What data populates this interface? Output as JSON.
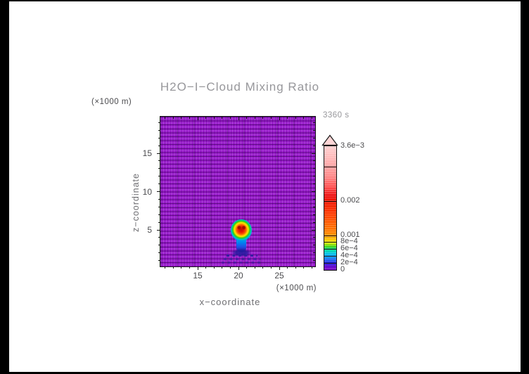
{
  "title": "H2O−I−Cloud Mixing Ratio",
  "timestamp": "3360 s",
  "plot": {
    "x_axis": {
      "label": "x−coordinate",
      "unit": "(×1000 m)",
      "ticks": [
        {
          "label": "15",
          "value": 15
        },
        {
          "label": "20",
          "value": 20
        },
        {
          "label": "25",
          "value": 25
        }
      ]
    },
    "y_axis": {
      "label": "z−coordinate",
      "unit": "(×1000 m)",
      "ticks": [
        {
          "label": "5",
          "value": 5
        },
        {
          "label": "10",
          "value": 10
        },
        {
          "label": "15",
          "value": 15
        }
      ]
    }
  },
  "colorbar": {
    "max_value": 0.0036,
    "ticks": [
      {
        "label": "0",
        "value": 0
      },
      {
        "label": "2e−4",
        "value": 0.0002
      },
      {
        "label": "4e−4",
        "value": 0.0004
      },
      {
        "label": "6e−4",
        "value": 0.0006
      },
      {
        "label": "8e−4",
        "value": 0.0008
      },
      {
        "label": "0.001",
        "value": 0.001
      },
      {
        "label": "0.002",
        "value": 0.002
      },
      {
        "label": "3.6e−3",
        "value": 0.0036
      }
    ],
    "divider_values": [
      0.0002,
      0.0004,
      0.0006,
      0.0008,
      0.001,
      0.002,
      0.003
    ]
  },
  "chart_data": {
    "type": "heatmap",
    "title": "H2O−I−Cloud Mixing Ratio",
    "time_label": "3360 s",
    "xlabel": "x−coordinate",
    "ylabel": "z−coordinate",
    "axis_units": "×1000 m",
    "xlim": [
      10.5,
      29.5
    ],
    "ylim": [
      0,
      20
    ],
    "xticks": [
      15,
      20,
      25
    ],
    "yticks": [
      5,
      10,
      15
    ],
    "grid": "fine model mesh visible across whole domain",
    "legend_position": "right colorbar with overflow arrow at top",
    "colorbar": {
      "min": 0,
      "max": 0.0036,
      "tick_values": [
        0,
        0.0002,
        0.0004,
        0.0006,
        0.0008,
        0.001,
        0.002,
        0.0036
      ],
      "tick_labels": [
        "0",
        "2e−4",
        "4e−4",
        "6e−4",
        "8e−4",
        "0.001",
        "0.002",
        "3.6e−3"
      ],
      "palette_low_to_high": [
        "#7d00c4",
        "#2222dc",
        "#00a2ff",
        "#00d88a",
        "#eaf000",
        "#ff9000",
        "#f01400",
        "#ff8585",
        "#ffcfcf"
      ]
    },
    "field": {
      "background_value": 0,
      "feature": "mushroom-shaped cloud plume centered at x≈20: round cap from z≈4 to z≈6.5 with peak mixing ratio ≈3.6e−3 (red core ringed by orange, yellow, green, cyan, blue), cyan–blue stem of ≈2e−4 to 8e−4 from z≈2 to z≈4, faint dark-blue ripple artifacts near z≈1–2"
    }
  }
}
